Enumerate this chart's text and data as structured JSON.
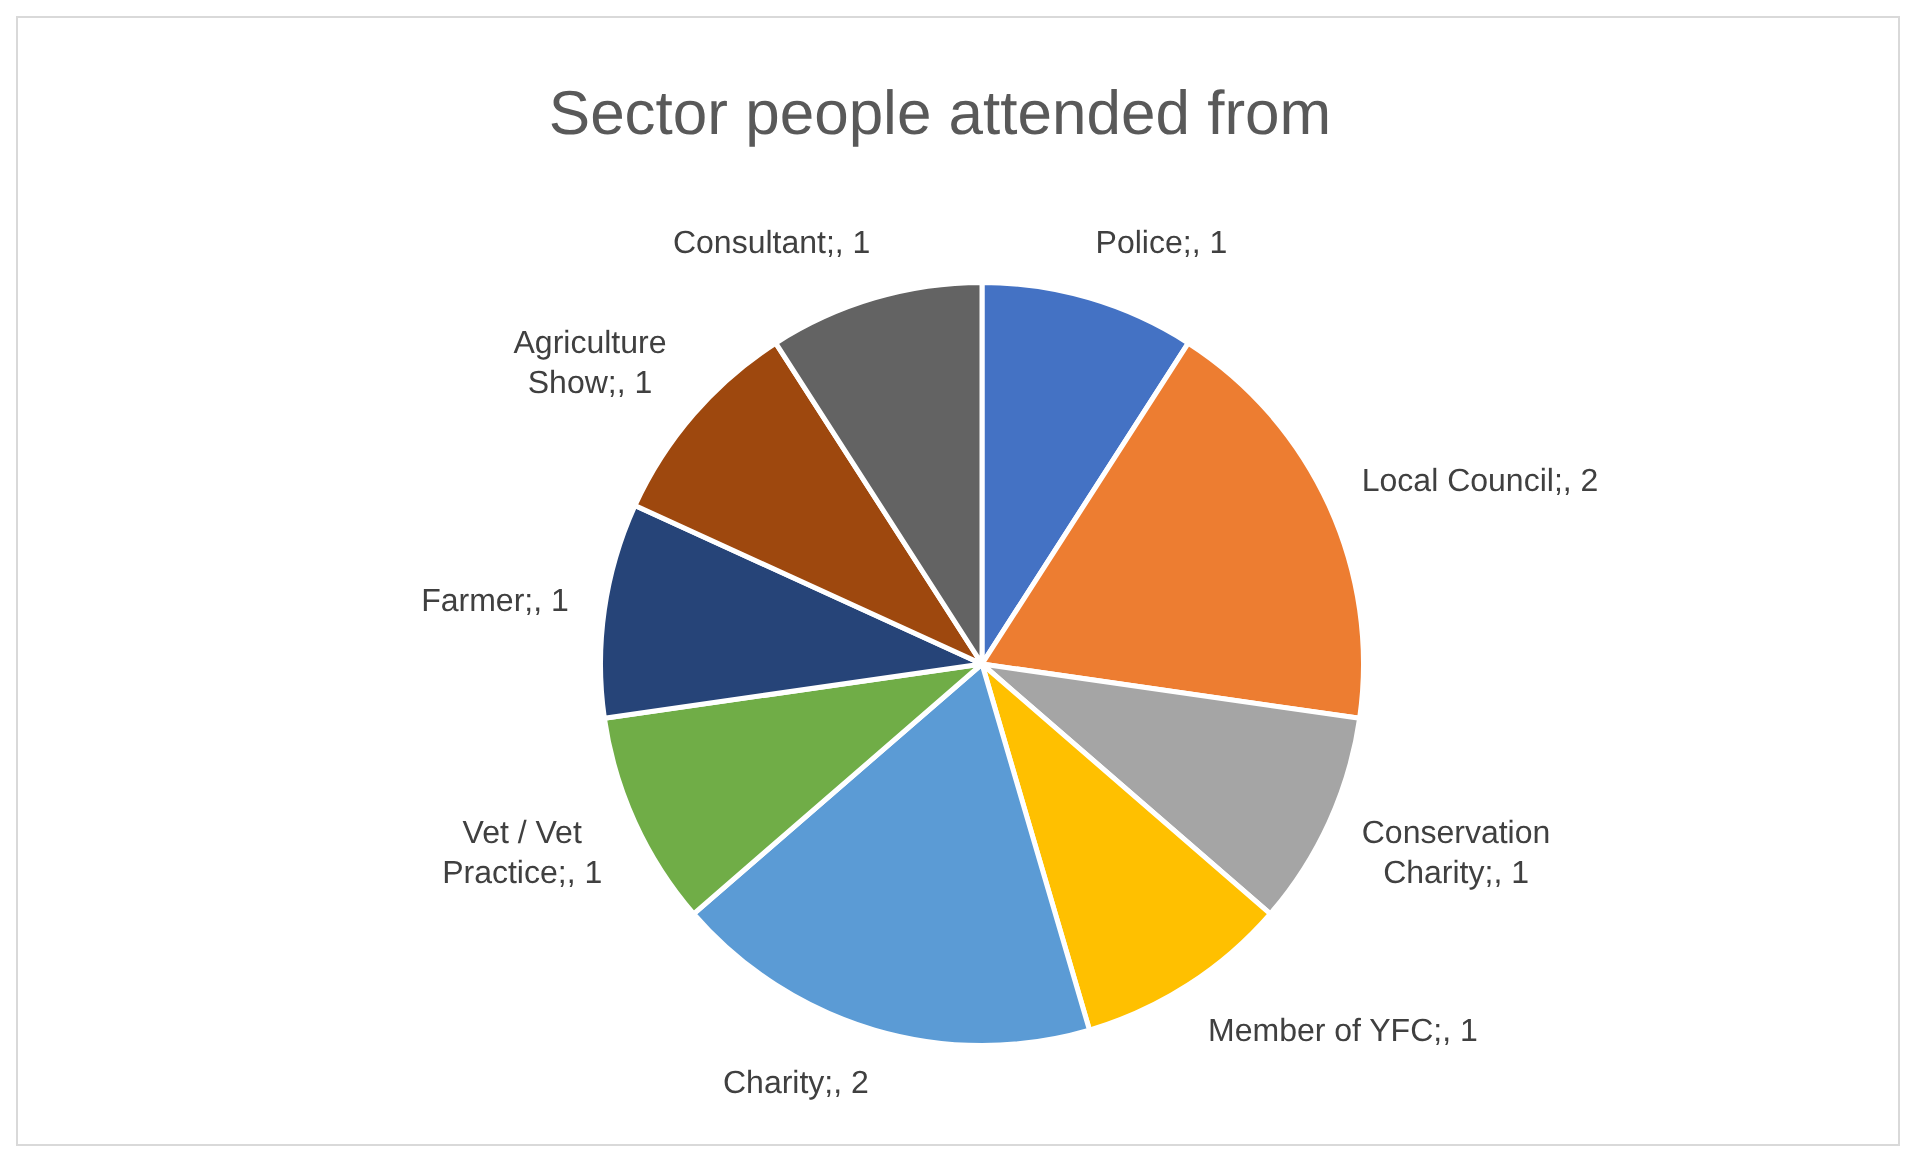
{
  "chart_data": {
    "type": "pie",
    "title": "Sector people attended from",
    "categories": [
      "Police",
      "Local Council",
      "Conservation Charity",
      "Member of YFC",
      "Charity",
      "Vet / Vet Practice",
      "Farmer",
      "Agriculture Show",
      "Consultant"
    ],
    "values": [
      1,
      2,
      1,
      1,
      2,
      1,
      1,
      1,
      1
    ],
    "colors": [
      "#4472c4",
      "#ed7d31",
      "#a5a5a5",
      "#ffc000",
      "#5b9bd5",
      "#70ad47",
      "#264478",
      "#9e480e",
      "#636363"
    ],
    "value_labels": [
      ";, 1",
      ";, 2",
      ";, 1",
      ";, 1",
      ";, 2",
      ";, 1",
      ";, 1",
      ";, 1",
      ";, 1"
    ],
    "legend": false
  }
}
